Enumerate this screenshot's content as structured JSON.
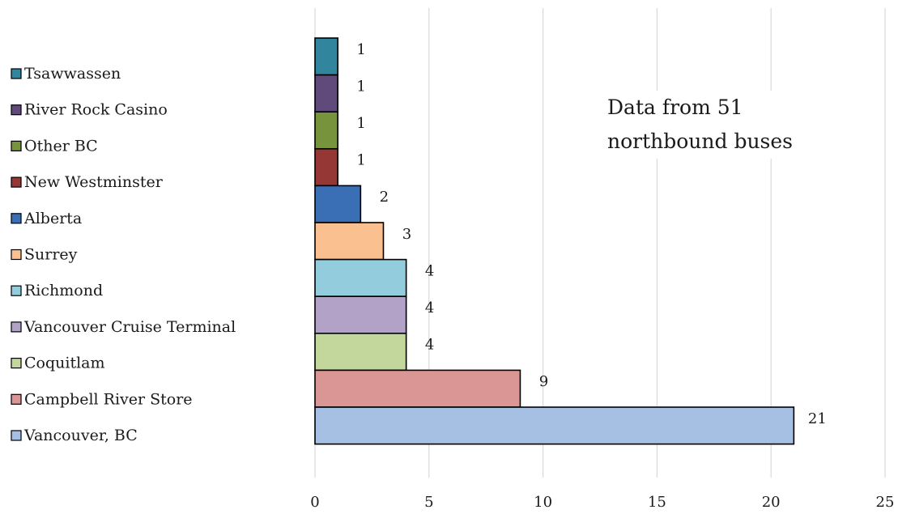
{
  "chart_data": {
    "type": "bar",
    "orientation": "horizontal",
    "categories": [
      "Tsawwassen",
      "River Rock Casino",
      "Other BC",
      "New Westminster",
      "Alberta",
      "Surrey",
      "Richmond",
      "Vancouver Cruise Terminal",
      "Coquitlam",
      "Campbell River Store",
      "Vancouver, BC"
    ],
    "values": [
      1,
      1,
      1,
      1,
      2,
      3,
      4,
      4,
      4,
      9,
      21
    ],
    "colors": [
      "#31859c",
      "#604a7b",
      "#77933c",
      "#953735",
      "#3a6fb5",
      "#fac090",
      "#93cddd",
      "#b3a2c7",
      "#c3d69b",
      "#d99694",
      "#a6c0e3"
    ],
    "xlim": [
      0,
      25
    ],
    "xticks": [
      0,
      5,
      10,
      15,
      20,
      25
    ],
    "grid": "vertical",
    "legend": "left",
    "annotation_lines": [
      "Data from 51",
      "northbound buses"
    ],
    "title": "",
    "xlabel": "",
    "ylabel": ""
  }
}
